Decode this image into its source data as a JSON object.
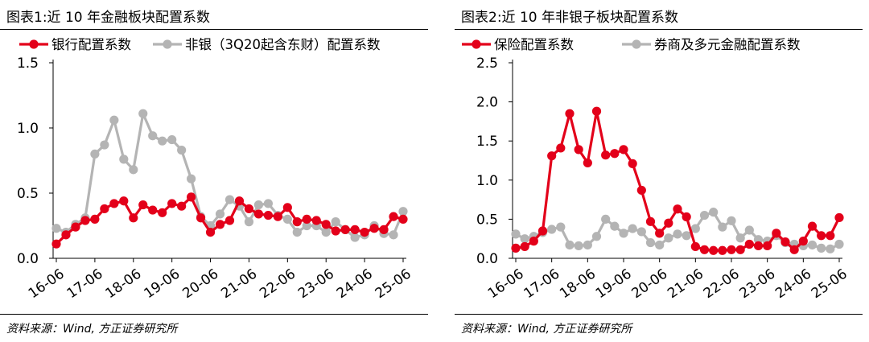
{
  "charts": [
    {
      "title": "图表1:近 10 年金融板块配置系数",
      "source": "资料来源：Wind, 方正证券研究所",
      "chart_data": {
        "type": "line",
        "title": "图表1:近 10 年金融板块配置系数",
        "xlabel": "",
        "ylabel": "",
        "ylim": [
          0,
          1.5
        ],
        "y_ticks": [
          "0.0",
          "0.5",
          "1.0",
          "1.5"
        ],
        "x_ticks": [
          "16-06",
          "17-06",
          "18-06",
          "19-06",
          "20-06",
          "21-06",
          "22-06",
          "23-06",
          "24-06",
          "25-06"
        ],
        "grid": false,
        "legend": "top",
        "x": [
          "16-06",
          "16-09",
          "16-12",
          "17-03",
          "17-06",
          "17-09",
          "17-12",
          "18-03",
          "18-06",
          "18-09",
          "18-12",
          "19-03",
          "19-06",
          "19-09",
          "19-12",
          "20-03",
          "20-06",
          "20-09",
          "20-12",
          "21-03",
          "21-06",
          "21-09",
          "21-12",
          "22-03",
          "22-06",
          "22-09",
          "22-12",
          "23-03",
          "23-06",
          "23-09",
          "23-12",
          "24-03",
          "24-06",
          "24-09",
          "24-12",
          "25-03",
          "25-06"
        ],
        "series": [
          {
            "name": "银行配置系数",
            "color": "#e3001a",
            "values": [
              0.11,
              0.18,
              0.24,
              0.29,
              0.3,
              0.38,
              0.42,
              0.44,
              0.31,
              0.41,
              0.37,
              0.35,
              0.42,
              0.4,
              0.47,
              0.31,
              0.2,
              0.26,
              0.29,
              0.44,
              0.38,
              0.34,
              0.33,
              0.32,
              0.39,
              0.28,
              0.3,
              0.29,
              0.26,
              0.21,
              0.22,
              0.22,
              0.2,
              0.23,
              0.22,
              0.32,
              0.3
            ]
          },
          {
            "name": "非银（3Q20起含东财）配置系数",
            "color": "#b4b4b4",
            "values": [
              0.23,
              0.2,
              0.26,
              0.31,
              0.8,
              0.87,
              1.06,
              0.76,
              0.68,
              1.11,
              0.94,
              0.9,
              0.91,
              0.83,
              0.61,
              0.32,
              0.25,
              0.34,
              0.45,
              0.4,
              0.28,
              0.41,
              0.42,
              0.33,
              0.3,
              0.2,
              0.25,
              0.25,
              0.2,
              0.28,
              0.22,
              0.16,
              0.18,
              0.25,
              0.19,
              0.18,
              0.36
            ]
          }
        ]
      }
    },
    {
      "title": "图表2:近 10 年非银子板块配置系数",
      "source": "资料来源：Wind, 方正证券研究所",
      "chart_data": {
        "type": "line",
        "title": "图表2:近 10 年非银子板块配置系数",
        "xlabel": "",
        "ylabel": "",
        "ylim": [
          0,
          2.5
        ],
        "y_ticks": [
          "0.0",
          "0.5",
          "1.0",
          "1.5",
          "2.0",
          "2.5"
        ],
        "x_ticks": [
          "16-06",
          "17-06",
          "18-06",
          "19-06",
          "20-06",
          "21-06",
          "22-06",
          "23-06",
          "24-06",
          "25-06"
        ],
        "grid": false,
        "legend": "top",
        "x": [
          "16-06",
          "16-09",
          "16-12",
          "17-03",
          "17-06",
          "17-09",
          "17-12",
          "18-03",
          "18-06",
          "18-09",
          "18-12",
          "19-03",
          "19-06",
          "19-09",
          "19-12",
          "20-03",
          "20-06",
          "20-09",
          "20-12",
          "21-03",
          "21-06",
          "21-09",
          "21-12",
          "22-03",
          "22-06",
          "22-09",
          "22-12",
          "23-03",
          "23-06",
          "23-09",
          "23-12",
          "24-03",
          "24-06",
          "24-09",
          "24-12",
          "25-03",
          "25-06"
        ],
        "series": [
          {
            "name": "保险配置系数",
            "color": "#e3001a",
            "values": [
              0.13,
              0.15,
              0.22,
              0.35,
              1.31,
              1.41,
              1.85,
              1.39,
              1.22,
              1.88,
              1.32,
              1.34,
              1.39,
              1.21,
              0.87,
              0.47,
              0.32,
              0.45,
              0.63,
              0.53,
              0.15,
              0.11,
              0.1,
              0.1,
              0.11,
              0.11,
              0.18,
              0.16,
              0.16,
              0.32,
              0.21,
              0.11,
              0.22,
              0.41,
              0.29,
              0.29,
              0.52
            ]
          },
          {
            "name": "券商及多元金融配置系数",
            "color": "#b4b4b4",
            "values": [
              0.31,
              0.25,
              0.28,
              0.33,
              0.37,
              0.4,
              0.17,
              0.16,
              0.17,
              0.28,
              0.5,
              0.41,
              0.32,
              0.38,
              0.34,
              0.2,
              0.17,
              0.26,
              0.31,
              0.29,
              0.38,
              0.55,
              0.59,
              0.4,
              0.48,
              0.26,
              0.36,
              0.24,
              0.22,
              0.29,
              0.2,
              0.18,
              0.16,
              0.17,
              0.13,
              0.12,
              0.18
            ]
          }
        ]
      }
    }
  ]
}
